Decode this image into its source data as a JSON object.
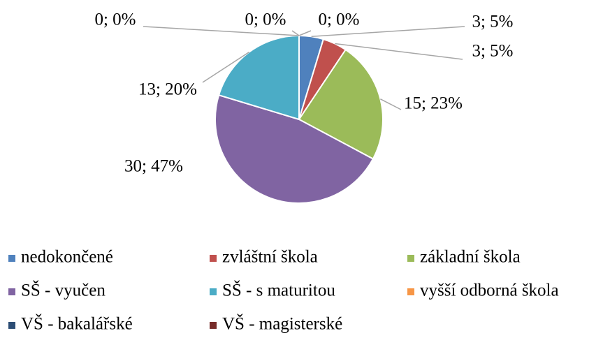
{
  "chart_data": {
    "type": "pie",
    "categories": [
      "nedokončené",
      "zvláštní škola",
      "základní škola",
      "SŠ - vyučen",
      "SŠ - s maturitou",
      "vyšší odborná škola",
      "VŠ - bakalářské",
      "VŠ - magisterské"
    ],
    "values": [
      3,
      3,
      15,
      30,
      13,
      0,
      0,
      0
    ],
    "value_labels": [
      "3; 5%",
      "3; 5%",
      "15; 23%",
      "30; 47%",
      "13; 20%",
      "0; 0%",
      "0; 0%",
      "0; 0%"
    ],
    "colors": [
      "#4f81bd",
      "#c0504d",
      "#9bbb59",
      "#8064a2",
      "#4bacc6",
      "#f79646",
      "#2c4d75",
      "#772c2a"
    ],
    "legend": "bottom"
  }
}
